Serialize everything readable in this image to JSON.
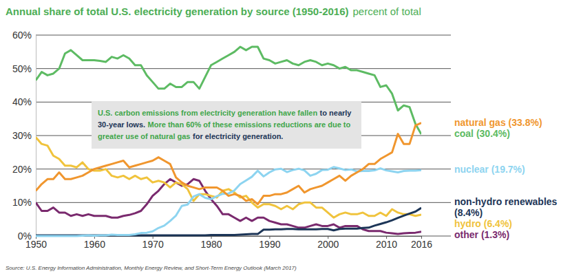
{
  "chart_data": {
    "type": "line",
    "title": "Annual share of total U.S. electricity generation by source (1950-2016)",
    "subtitle": "percent of total",
    "source": "Source: U.S. Energy Information Administration, Monthly Energy Review, and Short-Term Energy Outlook (March 2017)",
    "annotation": {
      "lines": [
        [
          {
            "text": "U.S. carbon emissions from electricity generation have fallen",
            "color": "#3fa64a"
          },
          {
            "text": "to nearly",
            "color": "#1c3557"
          }
        ],
        [
          {
            "text": "30-year lows.",
            "color": "#1c3557"
          },
          {
            "text": "More than 60% of these emissions reductions are due to",
            "color": "#3fa64a"
          }
        ],
        [
          {
            "text": "greater use of natural gas",
            "color": "#3fa64a"
          },
          {
            "text": "for electricity generation.",
            "color": "#1c3557"
          }
        ]
      ]
    },
    "x": [
      1950,
      1951,
      1952,
      1953,
      1954,
      1955,
      1956,
      1957,
      1958,
      1959,
      1960,
      1961,
      1962,
      1963,
      1964,
      1965,
      1966,
      1967,
      1968,
      1969,
      1970,
      1971,
      1972,
      1973,
      1974,
      1975,
      1976,
      1977,
      1978,
      1979,
      1980,
      1981,
      1982,
      1983,
      1984,
      1985,
      1986,
      1987,
      1988,
      1989,
      1990,
      1991,
      1992,
      1993,
      1994,
      1995,
      1996,
      1997,
      1998,
      1999,
      2000,
      2001,
      2002,
      2003,
      2004,
      2005,
      2006,
      2007,
      2008,
      2009,
      2010,
      2011,
      2012,
      2013,
      2014,
      2015,
      2016
    ],
    "xlim": [
      1950,
      2016
    ],
    "xticks": [
      1950,
      1960,
      1970,
      1980,
      1990,
      2000,
      2010,
      2016
    ],
    "ylim": [
      0,
      60
    ],
    "yticks": [
      {
        "value": 0,
        "label": "0%"
      },
      {
        "value": 10,
        "label": "10%"
      },
      {
        "value": 20,
        "label": "20%"
      },
      {
        "value": 30,
        "label": "30%"
      },
      {
        "value": 40,
        "label": "40%"
      },
      {
        "value": 50,
        "label": "50%"
      },
      {
        "value": 60,
        "label": "60%"
      }
    ],
    "grid": true,
    "series": [
      {
        "name": "natural gas (33.8%)",
        "color": "#f0962e",
        "values": [
          13.5,
          15.5,
          17,
          17,
          19,
          17,
          17,
          17.5,
          18,
          19,
          20,
          20.5,
          21,
          21.5,
          22,
          22.5,
          20.5,
          21,
          21.5,
          22,
          22.5,
          23.5,
          22.5,
          21.5,
          17.5,
          16,
          15,
          14.5,
          14,
          14.5,
          14.5,
          14.5,
          13.5,
          12,
          12.5,
          12,
          10.5,
          11,
          9.5,
          12,
          12,
          12.5,
          12.5,
          13,
          14,
          15,
          13,
          14,
          14.5,
          15,
          16,
          17,
          18,
          16.5,
          18,
          19,
          20,
          21.5,
          21.5,
          23,
          24,
          25,
          30.5,
          27.5,
          27.5,
          33,
          33.8
        ]
      },
      {
        "name": "coal (30.4%)",
        "color": "#5dbb63",
        "values": [
          46.5,
          49,
          48,
          48.5,
          50,
          54.5,
          55.5,
          54,
          52.5,
          52.5,
          52.5,
          52.3,
          52,
          53.5,
          53,
          54,
          53,
          51,
          51,
          48,
          46,
          44,
          44,
          45.5,
          44.5,
          44.5,
          46,
          46,
          44,
          47.5,
          51,
          52,
          53,
          54,
          55,
          56.5,
          55.5,
          56.5,
          56.5,
          53,
          52.5,
          51.5,
          52,
          52.5,
          51.5,
          51,
          52,
          52.5,
          52,
          51,
          51.5,
          51,
          50,
          50.5,
          49.5,
          49.5,
          49,
          48.5,
          48,
          44.5,
          45,
          42.5,
          37.5,
          39,
          38.5,
          33.5,
          30.4
        ]
      },
      {
        "name": "nuclear (19.7%)",
        "color": "#8dd4f0",
        "values": [
          0,
          0,
          0,
          0,
          0,
          0,
          0,
          0,
          0.1,
          0.2,
          0.1,
          0.2,
          0.2,
          0.4,
          0.3,
          0.3,
          0.3,
          0.5,
          0.9,
          1,
          1.4,
          2.4,
          3.1,
          4.5,
          6.1,
          9,
          9.4,
          11.8,
          12.5,
          11.4,
          11,
          11.9,
          12.6,
          12.7,
          13.6,
          15.5,
          16.6,
          17.7,
          19.5,
          17.8,
          19,
          19.9,
          20.1,
          19.1,
          19.7,
          20.1,
          19.6,
          18,
          18.6,
          19.7,
          19.8,
          20.6,
          20.2,
          19.7,
          19.9,
          19.3,
          19.4,
          19.4,
          19.6,
          20.2,
          19.6,
          19.3,
          19,
          19.4,
          19.5,
          19.5,
          19.7
        ]
      },
      {
        "name": "non-hydro renewables (8.4%)",
        "color": "#1c3557",
        "values": [
          0.2,
          0.2,
          0.2,
          0.2,
          0.2,
          0.2,
          0.2,
          0.2,
          0.2,
          0.2,
          0.2,
          0.2,
          0.2,
          0.2,
          0.2,
          0.2,
          0.2,
          0.2,
          0.2,
          0.2,
          0.2,
          0.2,
          0.2,
          0.2,
          0.2,
          0.2,
          0.2,
          0.2,
          0.2,
          0.2,
          0.3,
          0.3,
          0.3,
          0.3,
          0.3,
          0.4,
          0.5,
          0.6,
          0.6,
          1.9,
          1.9,
          2,
          2,
          2.1,
          2.1,
          2,
          2,
          2,
          2,
          2.1,
          2.1,
          1.7,
          2.1,
          2.2,
          2.2,
          2.2,
          2.4,
          2.5,
          3.1,
          3.6,
          4.1,
          4.7,
          5.4,
          6.1,
          6.7,
          7.3,
          8.4
        ]
      },
      {
        "name": "hydro (6.4%)",
        "color": "#f0c33c",
        "values": [
          29.5,
          27.5,
          27,
          24,
          23,
          21,
          21,
          20.5,
          22,
          20,
          19.5,
          19.5,
          20,
          18,
          17.5,
          18,
          17,
          18,
          17,
          17.5,
          16,
          16.5,
          16,
          14.5,
          16,
          15.5,
          14,
          10.5,
          12.5,
          12.5,
          12,
          11.5,
          13.5,
          14,
          13,
          11.5,
          12,
          10,
          8.5,
          9.5,
          9.5,
          9,
          8,
          9,
          8,
          9.5,
          10,
          10,
          8.5,
          8.5,
          7,
          5.5,
          6.5,
          7,
          6.5,
          6.5,
          7,
          6,
          6,
          7,
          6,
          8,
          7,
          6.5,
          6.5,
          6,
          6.4
        ]
      },
      {
        "name": "other (1.3%)",
        "color": "#7a2a6e",
        "values": [
          10,
          7.5,
          7.5,
          8.5,
          7,
          7,
          6,
          6.5,
          6,
          6.5,
          6,
          6,
          6,
          5.5,
          5.5,
          6,
          6.3,
          6.8,
          7.5,
          9.5,
          12,
          13.5,
          15.5,
          17,
          16,
          15,
          15.5,
          17,
          16.5,
          13.5,
          11,
          9,
          6.5,
          6.5,
          5.5,
          4.5,
          5.5,
          4.5,
          5.5,
          5.5,
          4.5,
          4,
          3.5,
          3.5,
          3,
          2.5,
          2.5,
          3,
          3.5,
          3,
          3,
          3.5,
          2.5,
          3,
          3,
          3,
          2,
          1.5,
          1.5,
          1.5,
          1,
          0.8,
          0.6,
          0.8,
          0.9,
          1,
          1.3
        ]
      }
    ]
  }
}
